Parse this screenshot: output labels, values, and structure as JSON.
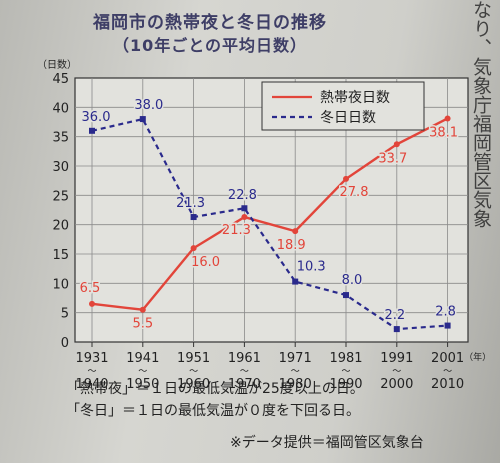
{
  "chart_data": {
    "type": "line",
    "title": "福岡市の熱帯夜と冬日の推移",
    "subtitle": "（10年ごとの平均日数）",
    "ylabel": "（日数）",
    "xunit": "（年）",
    "ylim": [
      0,
      45
    ],
    "yticks": [
      0,
      5,
      10,
      15,
      20,
      25,
      30,
      35,
      40,
      45
    ],
    "grid": true,
    "legend_position": "top-right",
    "categories": [
      {
        "top": "1931",
        "bottom": "1940"
      },
      {
        "top": "1941",
        "bottom": "1950"
      },
      {
        "top": "1951",
        "bottom": "1960"
      },
      {
        "top": "1961",
        "bottom": "1970"
      },
      {
        "top": "1971",
        "bottom": "1980"
      },
      {
        "top": "1981",
        "bottom": "1990"
      },
      {
        "top": "1991",
        "bottom": "2000"
      },
      {
        "top": "2001",
        "bottom": "2010"
      }
    ],
    "series": [
      {
        "name": "熱帯夜日数",
        "color": "#e2453a",
        "style": "solid",
        "values": [
          6.5,
          5.5,
          16.0,
          21.3,
          18.9,
          27.8,
          33.7,
          38.1
        ],
        "labels": [
          "6.5",
          "5.5",
          "16.0",
          "21.3",
          "18.9",
          "27.8",
          "33.7",
          "38.1"
        ]
      },
      {
        "name": "冬日日数",
        "color": "#2a2a8c",
        "style": "dashed",
        "values": [
          36.0,
          38.0,
          21.3,
          22.8,
          10.3,
          8.0,
          2.2,
          2.8
        ],
        "labels": [
          "36.0",
          "38.0",
          "21.3",
          "22.8",
          "10.3",
          "8.0",
          "2.2",
          "2.8"
        ]
      }
    ]
  },
  "vertical_text": "なり、気象庁福岡管区気象",
  "footer": {
    "note1": "「熱帯夜」＝１日の最低気温が25度以上の日。",
    "note2": "「冬日」＝１日の最低気温が０度を下回る日。",
    "source": "※データ提供＝福岡管区気象台"
  }
}
